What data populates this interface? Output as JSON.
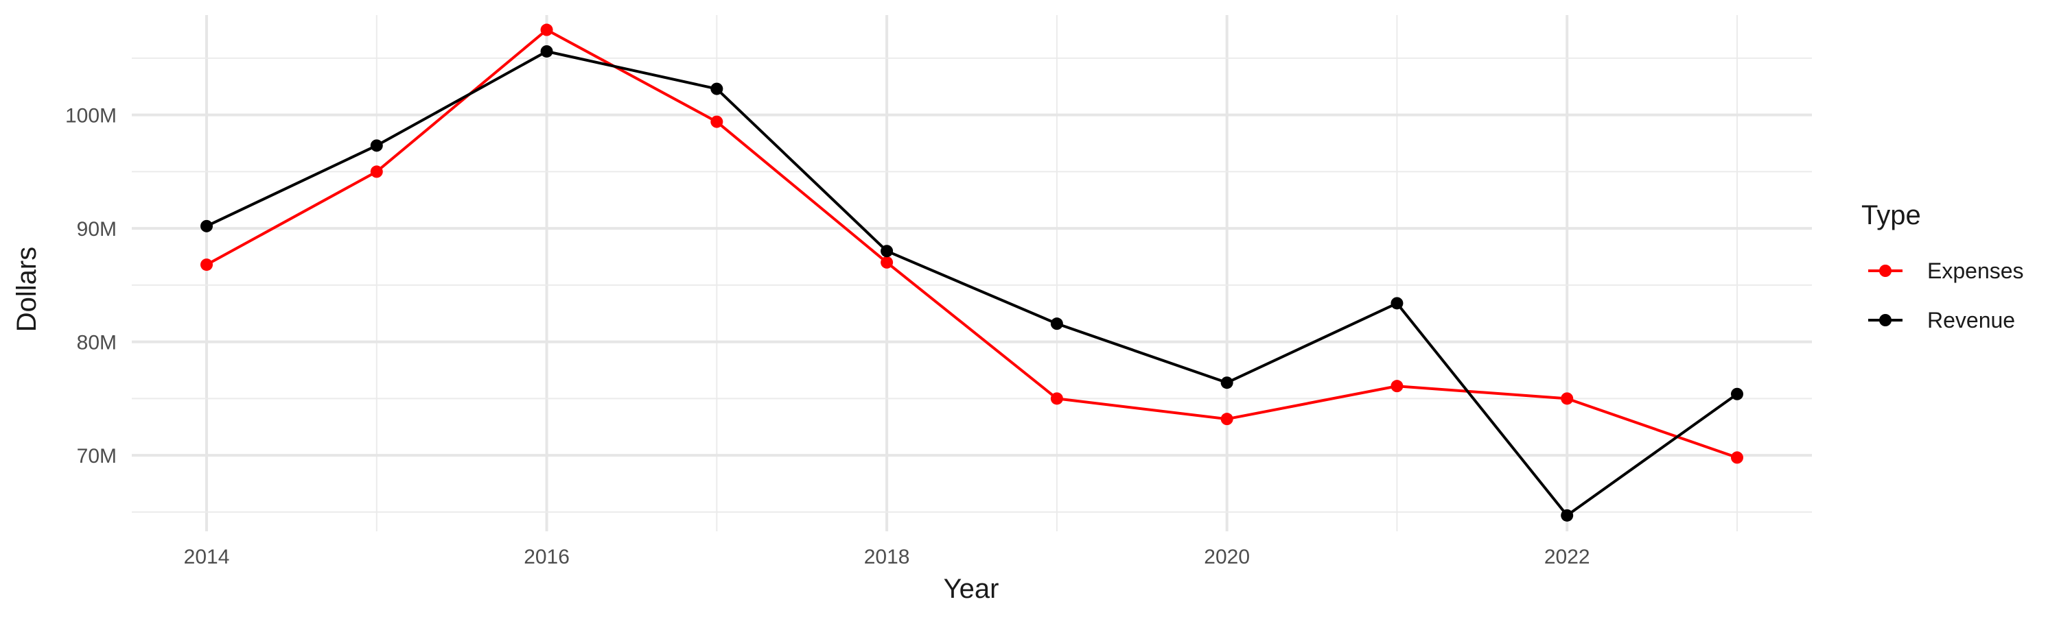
{
  "chart_data": {
    "type": "line",
    "title": "",
    "xlabel": "Year",
    "ylabel": "Dollars",
    "x": [
      2014,
      2015,
      2016,
      2017,
      2018,
      2019,
      2020,
      2021,
      2022,
      2023
    ],
    "xlim": [
      2013.56,
      2023.44
    ],
    "ylim": [
      63300000,
      108800000
    ],
    "x_ticks": [
      2014,
      2016,
      2018,
      2020,
      2022
    ],
    "x_tick_labels": [
      "2014",
      "2016",
      "2018",
      "2020",
      "2022"
    ],
    "y_ticks": [
      70000000,
      80000000,
      90000000,
      100000000
    ],
    "y_tick_labels": [
      "70M",
      "80M",
      "90M",
      "100M"
    ],
    "grid": true,
    "legend": {
      "title": "Type",
      "placement": "right"
    },
    "series": [
      {
        "name": "Expenses",
        "color": "#ff0000",
        "values": [
          86800000,
          95000000,
          107500000,
          99400000,
          87000000,
          75000000,
          73200000,
          76100000,
          75000000,
          69800000
        ]
      },
      {
        "name": "Revenue",
        "color": "#000000",
        "values": [
          90200000,
          97300000,
          105600000,
          102300000,
          88000000,
          81600000,
          76400000,
          83400000,
          64700000,
          75400000
        ]
      }
    ]
  }
}
